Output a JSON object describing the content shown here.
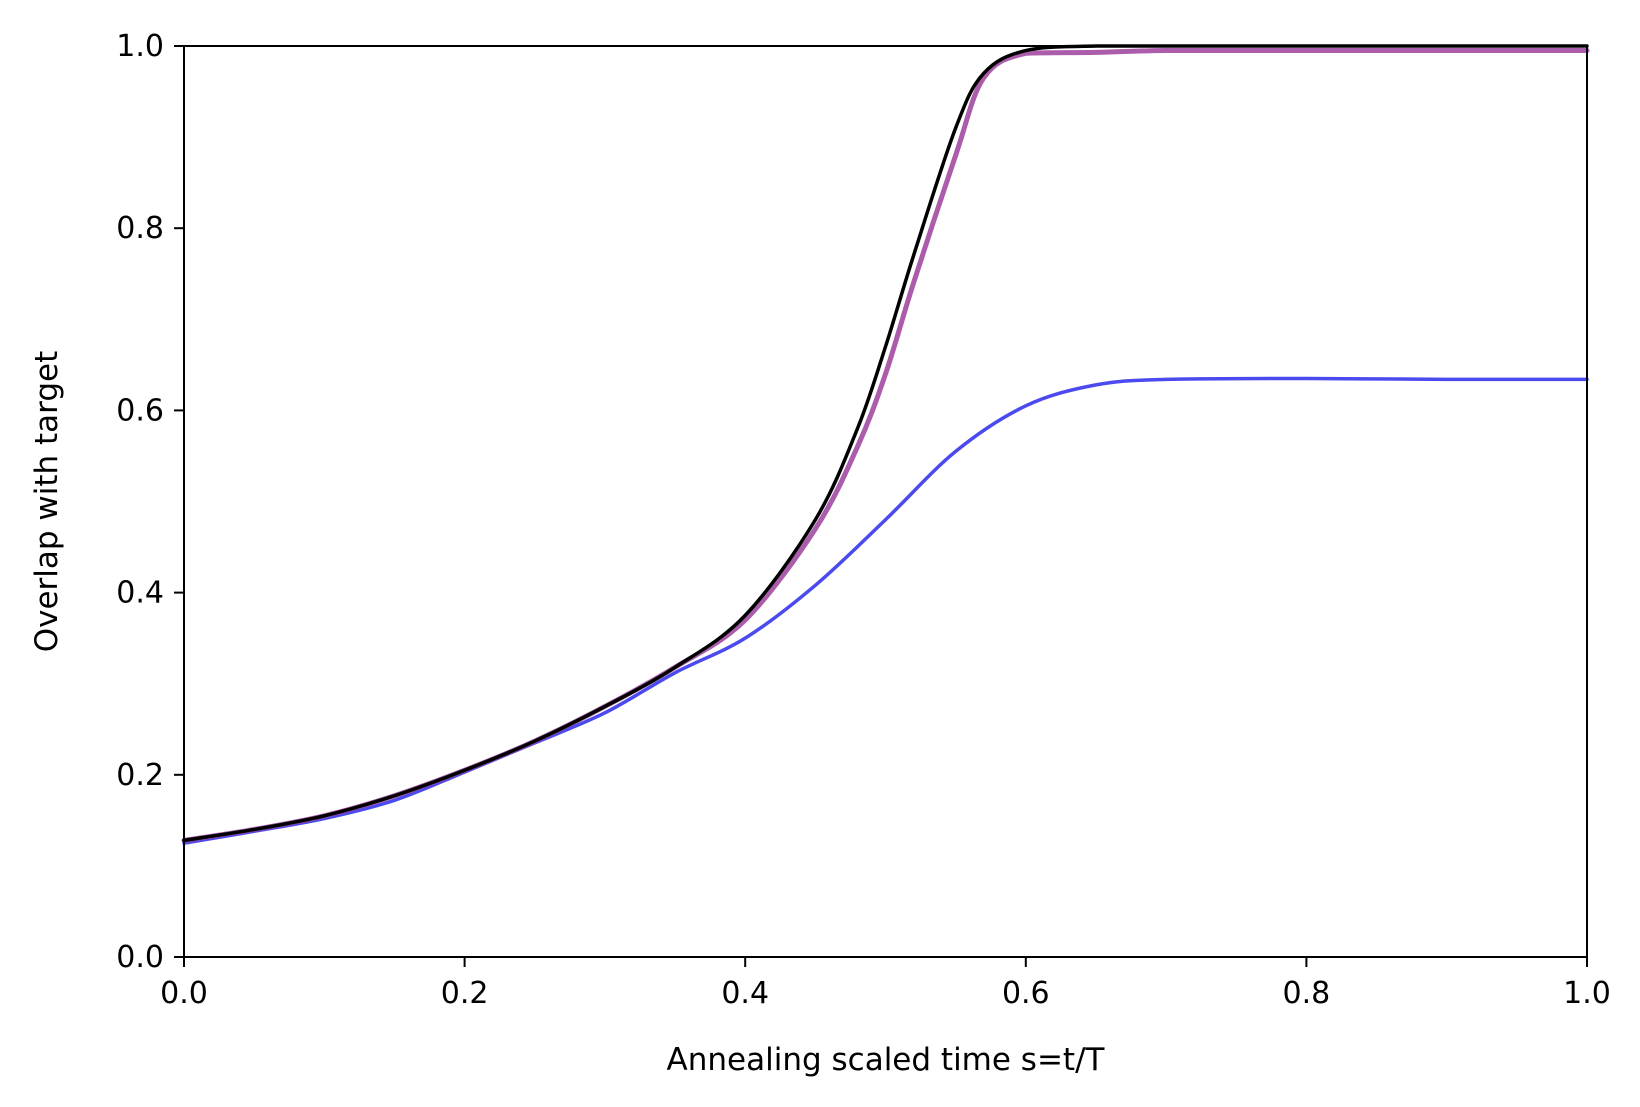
{
  "chart_data": {
    "type": "line",
    "title": "",
    "xlabel": "Annealing scaled time s=t/T",
    "ylabel": "Overlap with target",
    "xlim": [
      0.0,
      1.0
    ],
    "ylim": [
      0.0,
      1.0
    ],
    "xticks": [
      "0.0",
      "0.2",
      "0.4",
      "0.6",
      "0.8",
      "1.0"
    ],
    "yticks": [
      "0.0",
      "0.2",
      "0.4",
      "0.6",
      "0.8",
      "1.0"
    ],
    "grid": false,
    "legend": "none",
    "series": [
      {
        "color": "#4a4aee",
        "x": [
          0.0,
          0.05,
          0.1,
          0.15,
          0.2,
          0.25,
          0.3,
          0.35,
          0.4,
          0.45,
          0.5,
          0.55,
          0.6,
          0.65,
          0.7,
          0.8,
          0.9,
          1.0
        ],
        "y": [
          0.125,
          0.138,
          0.152,
          0.172,
          0.203,
          0.235,
          0.268,
          0.312,
          0.35,
          0.408,
          0.48,
          0.555,
          0.605,
          0.628,
          0.634,
          0.635,
          0.634,
          0.634
        ]
      },
      {
        "color": "#9c3f9c",
        "x": [
          0.0,
          0.05,
          0.1,
          0.15,
          0.2,
          0.25,
          0.3,
          0.35,
          0.4,
          0.45,
          0.48,
          0.5,
          0.52,
          0.55,
          0.57,
          0.6,
          0.65,
          0.7,
          0.8,
          0.9,
          1.0
        ],
        "y": [
          0.128,
          0.14,
          0.155,
          0.177,
          0.205,
          0.237,
          0.275,
          0.318,
          0.37,
          0.47,
          0.56,
          0.64,
          0.74,
          0.88,
          0.965,
          0.992,
          0.993,
          0.995,
          0.995,
          0.995,
          0.995
        ]
      },
      {
        "color": "#000000",
        "x": [
          0.0,
          0.05,
          0.1,
          0.15,
          0.2,
          0.25,
          0.3,
          0.35,
          0.4,
          0.45,
          0.48,
          0.5,
          0.52,
          0.55,
          0.57,
          0.6,
          0.65,
          0.7,
          0.8,
          0.9,
          1.0
        ],
        "y": [
          0.128,
          0.14,
          0.155,
          0.177,
          0.205,
          0.237,
          0.275,
          0.318,
          0.375,
          0.48,
          0.58,
          0.67,
          0.77,
          0.91,
          0.97,
          0.995,
          1.0,
          1.0,
          1.0,
          1.0,
          1.0
        ]
      }
    ]
  }
}
